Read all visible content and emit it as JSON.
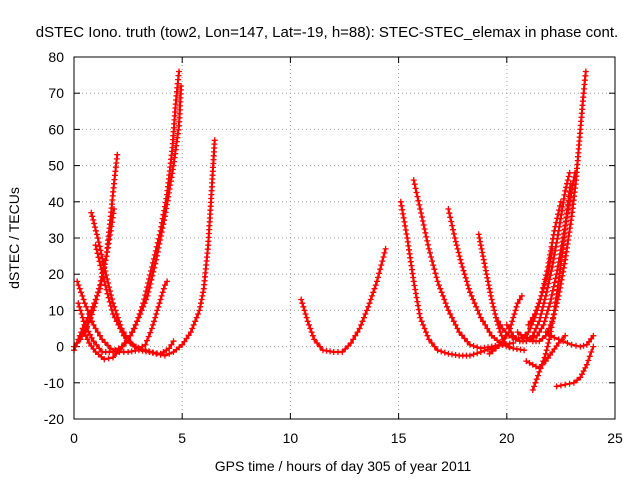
{
  "chart_data": {
    "type": "scatter",
    "title": "dSTEC Iono. truth (tow2, Lon=147, Lat=-19, h=88): STEC-STEC_elemax in phase cont.",
    "xlabel": "GPS time / hours of day 305 of year 2011",
    "ylabel": "dSTEC  / TECUs",
    "xlim": [
      0,
      25
    ],
    "ylim": [
      -20,
      80
    ],
    "xticks": [
      0,
      5,
      10,
      15,
      20,
      25
    ],
    "yticks": [
      -20,
      -10,
      0,
      10,
      20,
      30,
      40,
      50,
      60,
      70,
      80
    ],
    "grid": true,
    "marker": "plus",
    "color": "#ff0000",
    "series": [
      {
        "points": [
          [
            0.15,
            18
          ],
          [
            0.5,
            12
          ],
          [
            0.9,
            6
          ],
          [
            1.3,
            2
          ],
          [
            1.7,
            -0.5
          ],
          [
            2.1,
            -1.5
          ],
          [
            2.5,
            -1.5
          ],
          [
            3.0,
            -1
          ],
          [
            3.5,
            -1.5
          ],
          [
            4.0,
            -2
          ],
          [
            4.4,
            -0.5
          ],
          [
            4.6,
            1.5
          ]
        ]
      },
      {
        "points": [
          [
            0.0,
            0
          ],
          [
            0.3,
            2
          ],
          [
            0.6,
            5.5
          ],
          [
            0.9,
            10
          ],
          [
            1.2,
            17
          ],
          [
            1.5,
            25
          ],
          [
            1.7,
            32
          ],
          [
            1.85,
            38
          ]
        ]
      },
      {
        "points": [
          [
            0.0,
            -1
          ],
          [
            0.4,
            5
          ],
          [
            0.8,
            10
          ],
          [
            1.2,
            16
          ],
          [
            1.5,
            25
          ],
          [
            1.7,
            36
          ],
          [
            1.85,
            45
          ],
          [
            2.0,
            53
          ]
        ]
      },
      {
        "points": [
          [
            0.4,
            5
          ],
          [
            0.7,
            1
          ],
          [
            1.0,
            -1.5
          ],
          [
            1.4,
            -3.5
          ],
          [
            1.8,
            -3
          ],
          [
            2.1,
            -1
          ],
          [
            2.4,
            1
          ],
          [
            2.8,
            5
          ],
          [
            3.2,
            12
          ],
          [
            3.6,
            22
          ],
          [
            4.0,
            32
          ],
          [
            4.3,
            42
          ],
          [
            4.55,
            55
          ],
          [
            4.7,
            67
          ],
          [
            4.85,
            76
          ]
        ]
      },
      {
        "points": [
          [
            0.8,
            37
          ],
          [
            1.1,
            30
          ],
          [
            1.4,
            22
          ],
          [
            1.8,
            12
          ],
          [
            2.2,
            5
          ],
          [
            2.6,
            1
          ],
          [
            3.0,
            -0.5
          ],
          [
            3.3,
            0.5
          ],
          [
            3.6,
            5
          ],
          [
            3.9,
            11
          ],
          [
            4.2,
            17
          ],
          [
            4.3,
            18
          ]
        ]
      },
      {
        "points": [
          [
            0.2,
            12
          ],
          [
            0.5,
            6
          ],
          [
            0.9,
            1.5
          ],
          [
            1.3,
            -1.5
          ],
          [
            1.8,
            -1.5
          ],
          [
            2.2,
            0
          ],
          [
            2.6,
            3
          ],
          [
            3.0,
            8
          ],
          [
            3.4,
            14
          ],
          [
            3.8,
            24
          ],
          [
            4.2,
            36
          ],
          [
            4.6,
            50
          ],
          [
            4.85,
            61
          ],
          [
            4.95,
            72
          ]
        ]
      },
      {
        "points": [
          [
            1.0,
            28
          ],
          [
            1.4,
            18
          ],
          [
            1.8,
            9
          ],
          [
            2.3,
            3
          ],
          [
            2.8,
            0
          ],
          [
            3.3,
            -1
          ],
          [
            3.8,
            -2
          ],
          [
            4.2,
            -2.5
          ],
          [
            4.6,
            -1.5
          ],
          [
            5.0,
            0.5
          ],
          [
            5.4,
            4
          ],
          [
            5.8,
            10
          ],
          [
            6.0,
            16
          ],
          [
            6.2,
            28
          ],
          [
            6.35,
            42
          ],
          [
            6.5,
            57
          ]
        ]
      },
      {
        "points": [
          [
            10.5,
            13
          ],
          [
            10.8,
            7
          ],
          [
            11.1,
            2
          ],
          [
            11.5,
            -1
          ],
          [
            12.0,
            -1.5
          ],
          [
            12.4,
            -1.5
          ],
          [
            12.8,
            1
          ],
          [
            13.2,
            5
          ],
          [
            13.6,
            11
          ],
          [
            14.0,
            18
          ],
          [
            14.4,
            27
          ]
        ]
      },
      {
        "points": [
          [
            15.1,
            40
          ],
          [
            15.4,
            30
          ],
          [
            15.7,
            18
          ],
          [
            16.0,
            8
          ],
          [
            16.4,
            2
          ],
          [
            16.8,
            -1
          ],
          [
            17.3,
            -2
          ],
          [
            17.8,
            -2.5
          ],
          [
            18.3,
            -2.5
          ],
          [
            18.8,
            -1.5
          ],
          [
            19.3,
            -0.5
          ],
          [
            19.8,
            0.5
          ]
        ]
      },
      {
        "points": [
          [
            15.7,
            46
          ],
          [
            16.0,
            38
          ],
          [
            16.4,
            27
          ],
          [
            16.8,
            18
          ],
          [
            17.3,
            10
          ],
          [
            17.8,
            4
          ],
          [
            18.3,
            0.5
          ],
          [
            18.8,
            -0.5
          ],
          [
            19.3,
            0
          ],
          [
            19.8,
            0.5
          ],
          [
            20.3,
            1
          ]
        ]
      },
      {
        "points": [
          [
            17.3,
            38
          ],
          [
            17.6,
            30
          ],
          [
            17.9,
            23
          ],
          [
            18.3,
            15
          ],
          [
            18.8,
            8
          ],
          [
            19.3,
            3
          ],
          [
            19.8,
            0.5
          ],
          [
            20.3,
            -0.5
          ],
          [
            20.8,
            -1
          ]
        ]
      },
      {
        "points": [
          [
            18.7,
            31
          ],
          [
            18.9,
            25
          ],
          [
            19.1,
            19
          ],
          [
            19.3,
            13
          ],
          [
            19.5,
            8
          ],
          [
            19.7,
            4
          ],
          [
            19.9,
            1
          ],
          [
            20.1,
            0
          ]
        ]
      },
      {
        "points": [
          [
            19.2,
            -2
          ],
          [
            19.5,
            -0.5
          ],
          [
            19.8,
            1.5
          ],
          [
            20.1,
            4
          ],
          [
            20.3,
            8
          ],
          [
            20.5,
            12
          ],
          [
            20.7,
            14
          ]
        ]
      },
      {
        "points": [
          [
            19.5,
            8
          ],
          [
            19.8,
            5
          ],
          [
            20.1,
            3
          ],
          [
            20.4,
            2
          ],
          [
            20.7,
            2.5
          ],
          [
            21.0,
            4
          ],
          [
            21.3,
            8
          ],
          [
            21.6,
            14
          ],
          [
            21.9,
            22
          ],
          [
            22.2,
            32
          ],
          [
            22.5,
            40
          ]
        ]
      },
      {
        "points": [
          [
            20.0,
            6
          ],
          [
            20.3,
            3
          ],
          [
            20.6,
            1.5
          ],
          [
            20.9,
            1.5
          ],
          [
            21.2,
            3
          ],
          [
            21.5,
            7
          ],
          [
            21.8,
            14
          ],
          [
            22.1,
            22
          ],
          [
            22.4,
            32
          ],
          [
            22.7,
            43
          ],
          [
            22.9,
            48
          ]
        ]
      },
      {
        "points": [
          [
            20.5,
            4
          ],
          [
            20.8,
            2.5
          ],
          [
            21.1,
            2
          ],
          [
            21.4,
            3
          ],
          [
            21.7,
            6
          ],
          [
            22.0,
            12
          ],
          [
            22.3,
            20
          ],
          [
            22.6,
            30
          ],
          [
            22.9,
            40
          ],
          [
            23.15,
            48
          ]
        ]
      },
      {
        "points": [
          [
            20.9,
            2.5
          ],
          [
            21.2,
            1.5
          ],
          [
            21.5,
            1.5
          ],
          [
            21.8,
            3
          ],
          [
            22.1,
            7
          ],
          [
            22.4,
            14
          ],
          [
            22.7,
            24
          ],
          [
            23.0,
            36
          ],
          [
            23.2,
            46
          ],
          [
            23.4,
            60
          ],
          [
            23.55,
            70
          ],
          [
            23.65,
            76
          ]
        ]
      },
      {
        "points": [
          [
            21.0,
            6
          ],
          [
            21.3,
            9
          ],
          [
            21.6,
            14
          ],
          [
            21.9,
            20
          ],
          [
            22.1,
            27
          ]
        ]
      },
      {
        "points": [
          [
            21.2,
            -12
          ],
          [
            21.5,
            -7
          ],
          [
            21.8,
            -2
          ],
          [
            22.0,
            3
          ],
          [
            22.2,
            10
          ],
          [
            22.4,
            18
          ],
          [
            22.6,
            28
          ],
          [
            22.8,
            38
          ],
          [
            22.95,
            45
          ]
        ]
      },
      {
        "points": [
          [
            21.8,
            4
          ],
          [
            22.2,
            2.5
          ],
          [
            22.6,
            1.5
          ],
          [
            23.0,
            0.5
          ],
          [
            23.4,
            0
          ],
          [
            23.7,
            0.5
          ],
          [
            24.0,
            3
          ]
        ]
      },
      {
        "points": [
          [
            20.9,
            -4
          ],
          [
            21.2,
            -5
          ],
          [
            21.5,
            -6
          ],
          [
            21.8,
            -4
          ],
          [
            22.1,
            -1.5
          ],
          [
            22.4,
            1
          ],
          [
            22.7,
            3
          ]
        ]
      },
      {
        "points": [
          [
            22.3,
            -11
          ],
          [
            22.7,
            -10.5
          ],
          [
            23.1,
            -10
          ],
          [
            23.4,
            -8.5
          ],
          [
            23.7,
            -5
          ],
          [
            23.9,
            -1.5
          ],
          [
            24.0,
            0
          ]
        ]
      }
    ]
  }
}
